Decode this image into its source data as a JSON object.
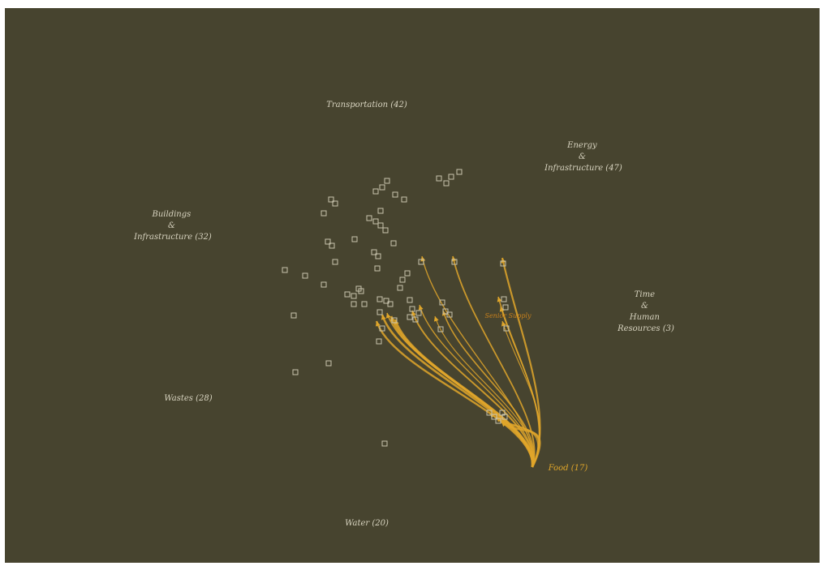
{
  "categories": {
    "transportation": {
      "lines": [
        "Transportation (42)"
      ]
    },
    "energy": {
      "lines": [
        "Energy",
        "&",
        "Infrastructure (47)"
      ]
    },
    "buildings": {
      "lines": [
        "Buildings",
        "&",
        "Infrastructure (32)"
      ]
    },
    "time": {
      "lines": [
        "Time",
        "&",
        "Human",
        "Resources (3)"
      ]
    },
    "wastes": {
      "lines": [
        "Wastes (28)"
      ]
    },
    "water": {
      "lines": [
        "Water (20)"
      ]
    },
    "food": {
      "lines": [
        "Food (17)"
      ]
    }
  },
  "highlight_label": "Senior Supply",
  "colors": {
    "background": "#47442f",
    "node": "#c8c4ae",
    "link": "#e0a62a",
    "text": "#d8d4c0"
  }
}
